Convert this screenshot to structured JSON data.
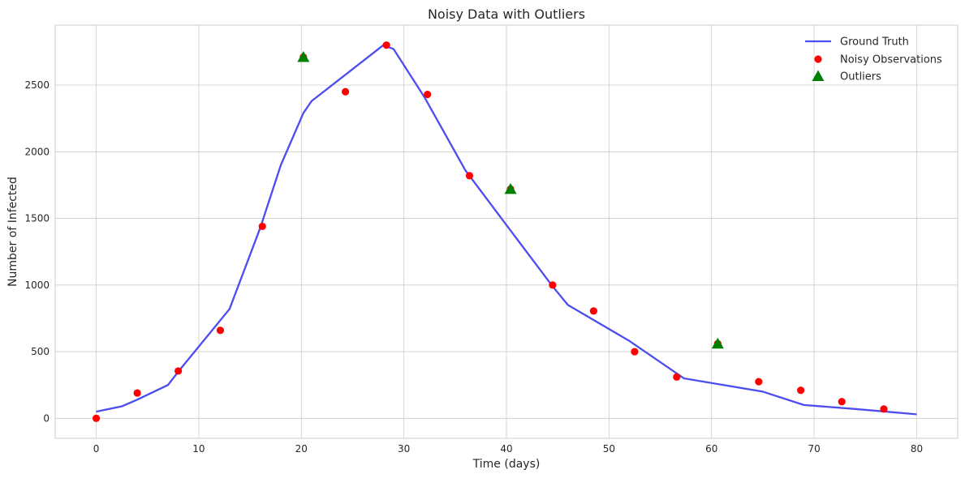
{
  "chart_data": {
    "type": "line",
    "title": "Noisy Data with Outliers",
    "xlabel": "Time (days)",
    "ylabel": "Number of Infected",
    "xlim": [
      -4,
      84
    ],
    "ylim": [
      -150,
      2950
    ],
    "xticks": [
      0,
      10,
      20,
      30,
      40,
      50,
      60,
      70,
      80
    ],
    "yticks": [
      0,
      500,
      1000,
      1500,
      2000,
      2500
    ],
    "grid": true,
    "legend_position": "top-right",
    "series": [
      {
        "name": "Ground Truth",
        "kind": "line",
        "color": "#4c4cf0",
        "x": [
          0,
          2.5,
          4,
          7,
          8,
          13,
          16,
          18,
          20.2,
          21,
          24,
          28,
          29,
          32,
          36,
          40,
          44.5,
          46,
          52,
          57.3,
          65,
          69,
          74,
          80
        ],
        "y": [
          50,
          90,
          140,
          250,
          350,
          820,
          1430,
          1900,
          2290,
          2380,
          2560,
          2800,
          2770,
          2410,
          1860,
          1450,
          990,
          850,
          580,
          300,
          200,
          100,
          70,
          30
        ]
      },
      {
        "name": "Noisy Observations",
        "kind": "scatter",
        "marker": "circle",
        "color": "#ff0000",
        "x": [
          0,
          4,
          8,
          12.1,
          16.2,
          20.2,
          24.3,
          28.3,
          32.3,
          36.4,
          40.4,
          44.5,
          48.5,
          52.5,
          56.6,
          60.6,
          64.6,
          68.7,
          72.7,
          76.8
        ],
        "y": [
          0,
          190,
          355,
          660,
          1440,
          2710,
          2450,
          2800,
          2430,
          1820,
          1720,
          1000,
          805,
          500,
          310,
          560,
          275,
          210,
          125,
          70
        ]
      },
      {
        "name": "Outliers",
        "kind": "scatter",
        "marker": "triangle",
        "color": "#008000",
        "x": [
          20.2,
          40.4,
          60.6
        ],
        "y": [
          2710,
          1720,
          560
        ]
      }
    ]
  }
}
